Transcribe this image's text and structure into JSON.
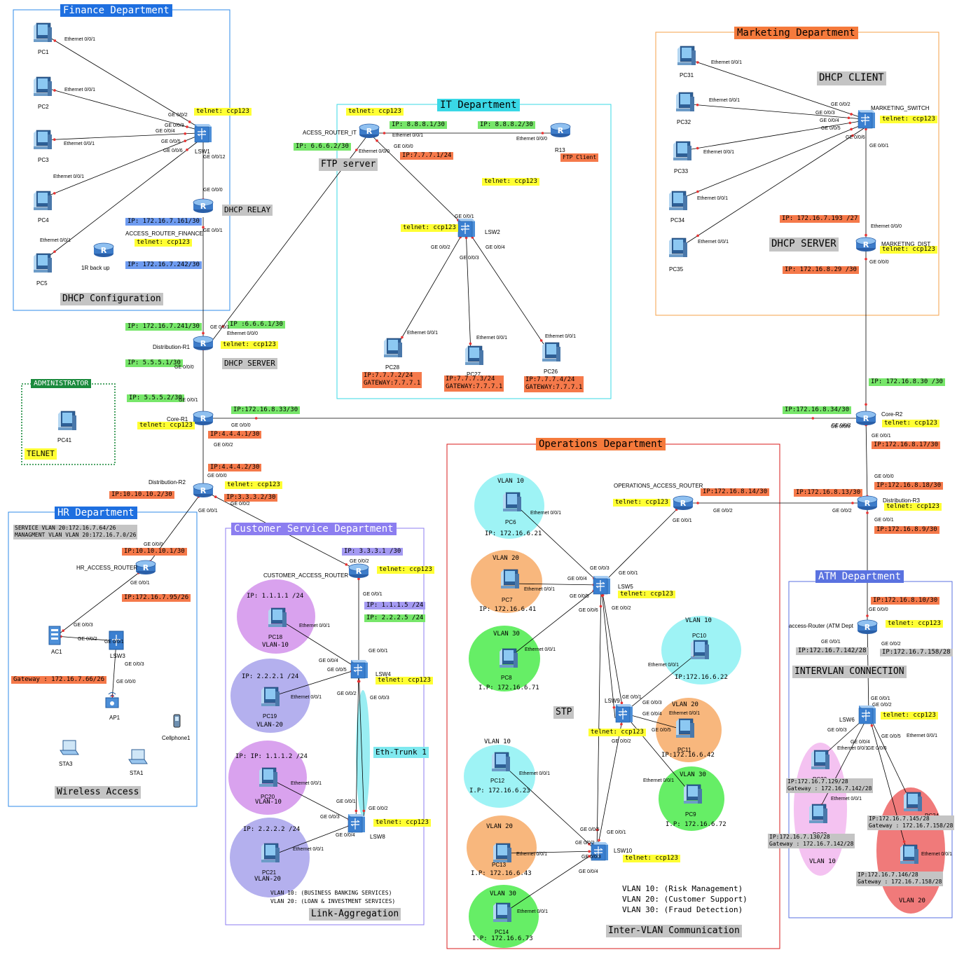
{
  "colors": {
    "blue_title": "#1e6fe0",
    "orange_title": "#f57a3c",
    "cyan_title": "#3ad8e6",
    "red_border": "#d81b1b",
    "purple_title": "#8c7ef0",
    "atm_title": "#5a72e0",
    "green_admin": "#1a8a3c",
    "telnet_yellow": "#ffff33",
    "ip_green": "#77e66a",
    "ip_blue": "#6e9bf0",
    "ip_orange": "#f5794a",
    "ip_purple": "#a49af2",
    "grey": "#c4c4c4",
    "link": "#000000",
    "vlan10_cyan": "#9ef3f5",
    "vlan20_orange": "#f8b77d",
    "vlan30_green": "#66ee66",
    "vlan10_purple": "#d9a2ee",
    "vlan20_lav": "#b4b0ee",
    "vlan10_pink": "#f4c2f1",
    "vlan20_red": "#f07a7a"
  },
  "departments": {
    "finance": "Finance Department",
    "marketing": "Marketing Department",
    "it": "IT Department",
    "operations": "Operations Department",
    "hr": "HR Department",
    "customer": "Customer Service Department",
    "atm": "ATM Department",
    "admin": "ADMINISTRATOR"
  },
  "captions": {
    "dhcp_configuration": "DHCP Configuration",
    "dhcp_relay": "DHCP RELAY",
    "dhcp_server_dist": "DHCP SERVER",
    "dhcp_server_mkt": "DHCP SERVER",
    "dhcp_client": "DHCP CLIENT",
    "ftp_server": "FTP server",
    "ftp_client": "FTP Client",
    "telnet": "TELNET",
    "wireless_access": "Wireless Access",
    "link_aggregation": "Link-Aggregation",
    "eth_trunk": "Eth-Trunk 1",
    "stp": "STP",
    "inter_vlan": "Inter-VLAN Communication",
    "intervlan_connection": "INTERVLAN CONNECTION"
  },
  "legends": {
    "ops_vlan10": "VLAN 10: (Risk Management)",
    "ops_vlan20": "VLAN 20: (Customer Support)",
    "ops_vlan30": "VLAN 30: (Fraud Detection)",
    "cs_vlan10": "VLAN 10: (BUSINESS BANKING SERVICES)",
    "cs_vlan20": "VLAN 20: (LOAN & INVESTMENT SERVICES)",
    "hr_service": "SERVICE VLAN 20:172.16.7.64/26",
    "hr_mgmt": "MANAGMENT VLAN VLAN 20:172.16.7.0/26"
  },
  "telnet": "telnet: ccp123",
  "devices": {
    "pc1": "PC1",
    "pc2": "PC2",
    "pc3": "PC3",
    "pc4": "PC4",
    "pc5": "PC5",
    "lsw1": "LSW1",
    "access_router_finance": "ACCESS_ROUTER_FINANCE",
    "backup": "1R back up",
    "pc31": "PC31",
    "pc32": "PC32",
    "pc33": "PC33",
    "pc34": "PC34",
    "pc35": "PC35",
    "marketing_switch": "MARKETING_SWITCH",
    "marketing_dist": "MARKETING_DIST",
    "acess_router_it": "ACESS_ROUTER_IT",
    "r13": "R13",
    "lsw2": "LSW2",
    "pc28": "PC28",
    "pc27": "PC27",
    "pc26": "PC26",
    "distribution_r1": "Distribution-R1",
    "core_r1": "Core-R1",
    "distribution_r2": "Distribution-R2",
    "core_r2": "Core-R2",
    "distribution_r3": "Distribution-R3",
    "pc41": "PC41",
    "hr_access_router": "HR_ACCESS_ROUTER",
    "ac1": "AC1",
    "lsw3": "LSW3",
    "ap1": "AP1",
    "cellphone1": "Cellphone1",
    "sta3": "STA3",
    "sta1": "STA1",
    "customer_access_router": "CUSTOMER_ACCESS_ROUTER",
    "lsw4": "LSW4",
    "lsw8": "LSW8",
    "pc18": "PC18",
    "pc19": "PC19",
    "pc20": "PC20",
    "pc21": "PC21",
    "operations_access_router": "OPERATIONS_ACCESS_ROUTER",
    "lsw5": "LSW5",
    "lsw9": "LSW9",
    "lsw10": "LSW10",
    "pc6": "PC6",
    "pc7": "PC7",
    "pc8": "PC8",
    "pc10": "PC10",
    "pc11": "PC11",
    "pc9": "PC9",
    "pc12": "PC12",
    "pc13": "PC13",
    "pc14": "PC14",
    "atm_router": "access-Router (ATM Dept",
    "lsw6": "LSW6",
    "pc23": "PC23",
    "pc22": "PC22",
    "pc24": "PC24",
    "pc25": "PC25"
  },
  "vlan_labels": {
    "v10": "VLAN 10",
    "v20": "VLAN 20",
    "v30": "VLAN 30",
    "vd10": "VLAN-10",
    "vd20": "VLAN-20",
    "atm10": "VLAN 10",
    "atm20": "VLAN 20"
  },
  "ips": {
    "fin_161": "IP: 172.16.7.161/30",
    "fin_242": "IP: 172.16.7.242/30",
    "dist1_241": "IP: 172.16.7.241/30",
    "dist1_6661": "IP :6.6.6.1/30",
    "dist1_5551": "IP: 5.5.5.1/30",
    "core1_5552": "IP: 5.5.5.2/30",
    "core1_33": "IP:172.16.8.33/30",
    "core1_4441": "IP:4.4.4.1/30",
    "dist2_4442": "IP:4.4.4.2/30",
    "dist2_3332": "IP:3.3.3.2/30",
    "dist2_10102": "IP:10.10.10.2/30",
    "it_6662": "IP: 6.6.6.2/30",
    "it_8881": "IP: 8.8.8.1/30",
    "it_8882": "IP: 8.8.8.2/30",
    "it_7771": "IP:7.7.7.1/24",
    "pc28_ip": "IP:7.7.7.2/24",
    "pc28_gw": "GATEWAY:7.7.7.1",
    "pc27_ip": "IP:7.7.7.3/24",
    "pc27_gw": "GATEWAY:7.7.7.1",
    "pc26_ip": "IP:7.7.7.4/24",
    "pc26_gw": "GATEWAY:7.7.7.1",
    "mkt_193": "IP: 172.16.7.193 /27",
    "mkt_29": "IP: 172.16.8.29 /30",
    "core2_30": "IP: 172.16.8.30 /30",
    "core2_34": "IP:172.16.8.34/30",
    "core2_17": "IP:172.16.8.17/30",
    "dist3_18": "IP:172.16.8.18/30",
    "dist3_13": "IP:172.16.8.13/30",
    "dist3_9": "IP:172.16.8.9/30",
    "ops_14": "IP:172.16.8.14/30",
    "atm_10": "IP:172.16.8.10/30",
    "atm_142": "IP:172.16.7.142/28",
    "atm_158": "IP:172.16.7.158/28",
    "hr_10101": "IP:10.10.10.1/30",
    "hr_95": "IP:172.16.7.95/26",
    "hr_gw": "Gateway : 172.16.7.66/26",
    "cs_3331": "IP: 3.3.3.1 /30",
    "cs_1115": "IP: 1.1.1.5 /24",
    "cs_2225": "IP: 2.2.2.5 /24",
    "pc18_ip": "IP: 1.1.1.1 /24",
    "pc19_ip": "IP: 2.2.2.1 /24",
    "pc20_ip": "IP: IP: 1.1.1.2 /24",
    "pc21_ip": "IP: 2.2.2.2 /24",
    "pc6_ip": "IP: 172.16.6.21",
    "pc7_ip": "IP: 172.16.6.41",
    "pc8_ip": "I.P: 172.16.6.71",
    "pc10_ip": "IP:172.16.6.22",
    "pc11_ip": "IP:172.16.6.42",
    "pc9_ip": "I.P: 172.16.6.72",
    "pc12_ip": "I.P: 172.16.6.23",
    "pc13_ip": "I.P: 172.16.6.43",
    "pc14_ip": "I.P: 172.16.6.73",
    "pc23_ip": "IP:172.16.7.129/28",
    "pc23_gw": "Gateway : 172.16.7.142/28",
    "pc22_ip": "IP:172.16.7.130/28",
    "pc22_gw": "Gateway : 172.16.7.142/28",
    "pc24_ip": "IP:172.16.7.145/28",
    "pc24_gw": "Gateway : 172.16.7.158/28",
    "pc25_ip": "IP:172.16.7.146/28",
    "pc25_gw": "Gateway : 172.16.7.158/28"
  },
  "ports": {
    "e001": "Ethernet 0/0/1",
    "e000": "Ethernet 0/0/0",
    "ge001": "GE 0/0/1",
    "ge002": "GE 0/0/2",
    "ge003": "GE 0/0/3",
    "ge004": "GE 0/0/4",
    "ge005": "GE 0/0/5",
    "ge006": "GE 0/0/6",
    "ge000": "GE 0/0/0",
    "ge0012": "GE 0/0/12"
  }
}
